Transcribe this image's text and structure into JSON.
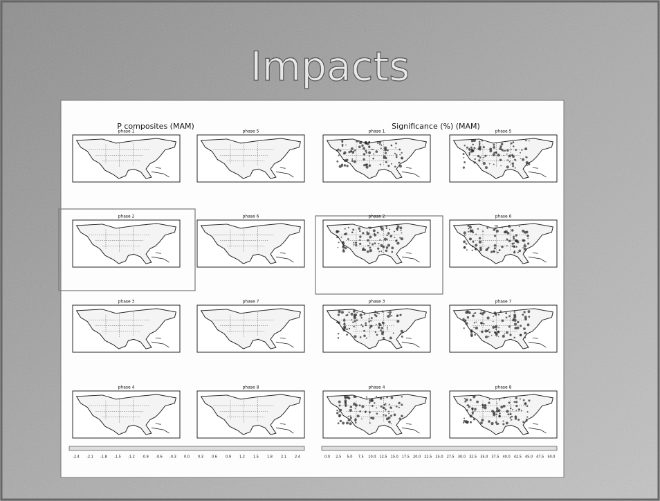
{
  "slide_title": "Impacts",
  "composites": {
    "title": "P composites (MAM)",
    "maps": [
      "phase 1",
      "phase 5",
      "phase 2",
      "phase 6",
      "phase 3",
      "phase 7",
      "phase 4",
      "phase 8"
    ],
    "colorbar_labels": [
      "-2.4",
      "-2.1",
      "-1.8",
      "-1.5",
      "-1.2",
      "-0.9",
      "-0.6",
      "-0.3",
      "0.0",
      "0.3",
      "0.6",
      "0.9",
      "1.2",
      "1.5",
      "1.8",
      "2.1",
      "2.4"
    ]
  },
  "significance": {
    "title": "Significance (%) (MAM)",
    "maps": [
      "phase 1",
      "phase 5",
      "phase 2",
      "phase 6",
      "phase 3",
      "phase 7",
      "phase 4",
      "phase 8"
    ],
    "colorbar_labels": [
      "0.0",
      "2.5",
      "5.0",
      "7.5",
      "10.0",
      "12.5",
      "15.0",
      "17.5",
      "20.0",
      "22.5",
      "25.0",
      "27.5",
      "30.0",
      "32.5",
      "35.0",
      "37.5",
      "40.0",
      "42.5",
      "45.0",
      "47.5",
      "50.0"
    ]
  }
}
